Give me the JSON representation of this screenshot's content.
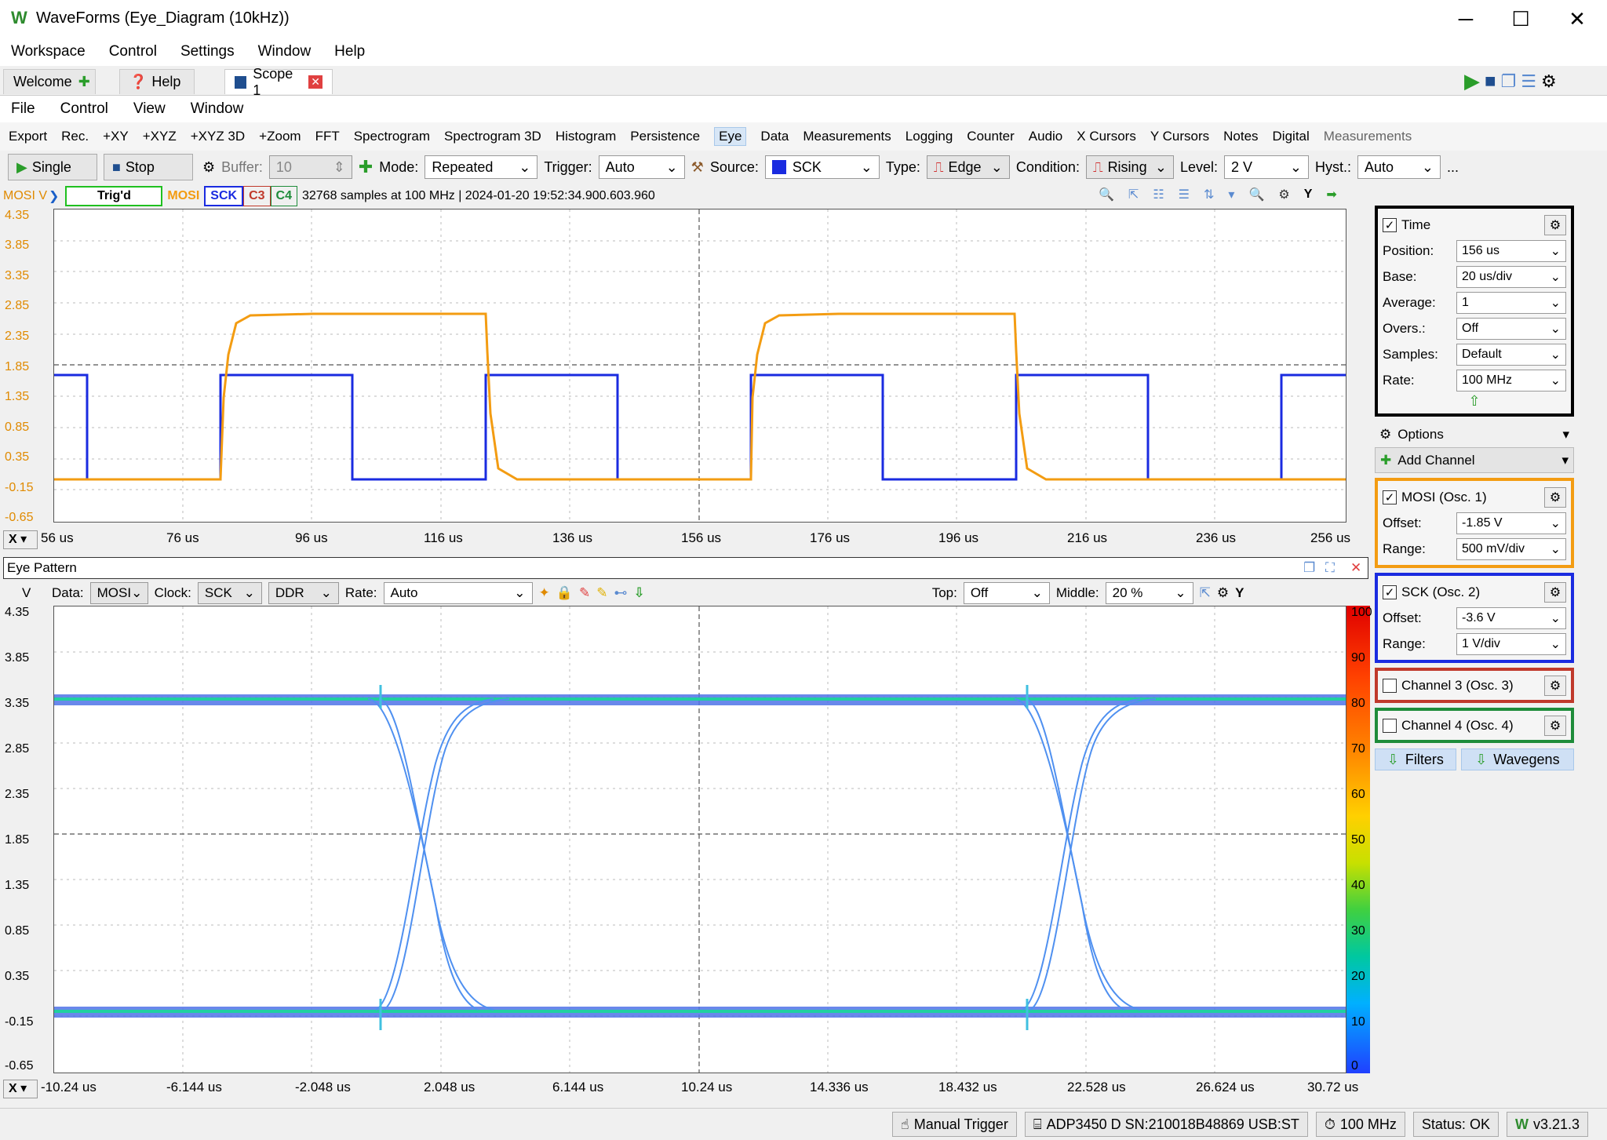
{
  "window": {
    "title": "WaveForms (Eye_Diagram (10kHz))",
    "minimize": "─",
    "maximize": "☐",
    "close": "✕"
  },
  "main_menu": [
    "Workspace",
    "Control",
    "Settings",
    "Window",
    "Help"
  ],
  "tabs": [
    {
      "label": "Welcome"
    },
    {
      "label": "Help"
    },
    {
      "label": "Scope 1"
    }
  ],
  "scope_menu": [
    "File",
    "Control",
    "View",
    "Window"
  ],
  "toolbar1": [
    "Export",
    "Rec.",
    "+XY",
    "+XYZ",
    "+XYZ 3D",
    "+Zoom",
    "FFT",
    "Spectrogram",
    "Spectrogram 3D",
    "Histogram",
    "Persistence",
    "Eye",
    "Data",
    "Measurements",
    "Logging",
    "Counter",
    "Audio",
    "X Cursors",
    "Y Cursors",
    "Notes",
    "Digital",
    "Measurements"
  ],
  "toolbar2": {
    "single": "Single",
    "stop": "Stop",
    "buffer_label": "Buffer:",
    "buffer_value": "10",
    "mode_label": "Mode:",
    "mode_value": "Repeated",
    "trigger_label": "Trigger:",
    "trigger_value": "Auto",
    "source_label": "Source:",
    "source_value": "SCK",
    "type_label": "Type:",
    "type_value": "Edge",
    "condition_label": "Condition:",
    "condition_value": "Rising",
    "level_label": "Level:",
    "level_value": "2 V",
    "hyst_label": "Hyst.:",
    "hyst_value": "Auto",
    "more": "..."
  },
  "status": {
    "unit": "MOSI V",
    "trig": "Trig'd",
    "ch1": "MOSI",
    "ch2": "SCK",
    "ch3": "C3",
    "ch4": "C4",
    "info": "32768 samples at 100 MHz  | 2024-01-20 19:52:34.900.603.960",
    "y_btn": "Y"
  },
  "plot1": {
    "y_ticks": [
      "4.35",
      "3.85",
      "3.35",
      "2.85",
      "2.35",
      "1.85",
      "1.35",
      "0.85",
      "0.35",
      "-0.15",
      "-0.65"
    ],
    "x_ticks": [
      "56 us",
      "76 us",
      "96 us",
      "116 us",
      "136 us",
      "156 us",
      "176 us",
      "196 us",
      "216 us",
      "236 us",
      "256 us"
    ],
    "x_btn": "X"
  },
  "eye": {
    "title": "Eye Pattern",
    "unit": "V",
    "data_label": "Data:",
    "data_value": "MOSI",
    "clock_label": "Clock:",
    "clock_value": "SCK",
    "ddr_value": "DDR",
    "rate_label": "Rate:",
    "rate_value": "Auto",
    "top_label": "Top:",
    "top_value": "Off",
    "middle_label": "Middle:",
    "middle_value": "20 %",
    "y_btn": "Y",
    "x_btn": "X",
    "y_ticks": [
      "4.35",
      "3.85",
      "3.35",
      "2.85",
      "2.35",
      "1.85",
      "1.35",
      "0.85",
      "0.35",
      "-0.15",
      "-0.65"
    ],
    "x_ticks": [
      "-10.24 us",
      "-6.144 us",
      "-2.048 us",
      "2.048 us",
      "6.144 us",
      "10.24 us",
      "14.336 us",
      "18.432 us",
      "22.528 us",
      "26.624 us",
      "30.72 us"
    ],
    "color_ticks": [
      "100",
      "90",
      "80",
      "70",
      "60",
      "50",
      "40",
      "30",
      "20",
      "10",
      "0"
    ]
  },
  "time_panel": {
    "title": "Time",
    "position_label": "Position:",
    "position": "156 us",
    "base_label": "Base:",
    "base": "20 us/div",
    "average_label": "Average:",
    "average": "1",
    "overs_label": "Overs.:",
    "overs": "Off",
    "samples_label": "Samples:",
    "samples": "Default",
    "rate_label": "Rate:",
    "rate": "100 MHz"
  },
  "options_label": "Options",
  "add_channel_label": "Add Channel",
  "ch1": {
    "title": "MOSI (Osc. 1)",
    "offset_label": "Offset:",
    "offset": "-1.85 V",
    "range_label": "Range:",
    "range": "500 mV/div"
  },
  "ch2": {
    "title": "SCK (Osc. 2)",
    "offset_label": "Offset:",
    "offset": "-3.6 V",
    "range_label": "Range:",
    "range": "1 V/div"
  },
  "ch3": {
    "title": "Channel 3 (Osc. 3)"
  },
  "ch4": {
    "title": "Channel 4 (Osc. 4)"
  },
  "filters_label": "Filters",
  "wavegens_label": "Wavegens",
  "footer": {
    "manual_trigger": "Manual Trigger",
    "device": "ADP3450 D SN:210018B48869 USB:ST",
    "clock": "100 MHz",
    "status": "Status: OK",
    "version": "v3.21.3"
  },
  "colors": {
    "mosi": "#f39c12",
    "sck": "#1a2be0",
    "c3": "#c0392b",
    "c4": "#1e8c3a"
  }
}
